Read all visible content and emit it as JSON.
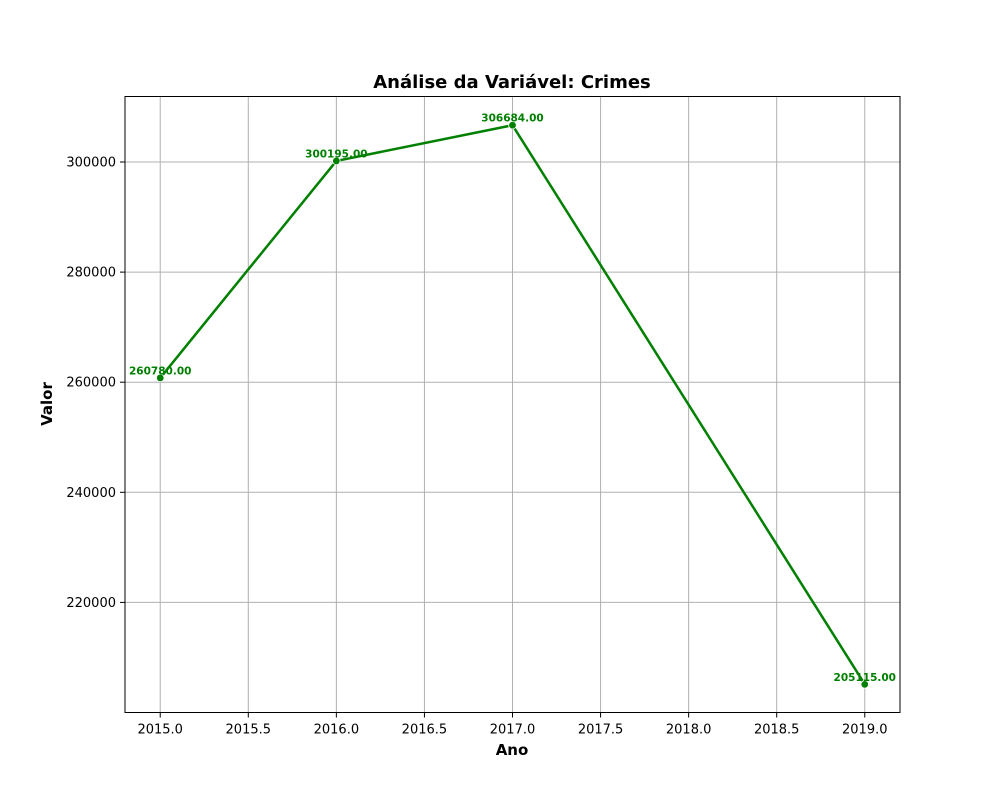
{
  "chart_data": {
    "type": "line",
    "title": "Análise da Variável: Crimes",
    "xlabel": "Ano",
    "ylabel": "Valor",
    "x": [
      2015,
      2016,
      2017,
      2019
    ],
    "series": [
      {
        "values": [
          260780.0,
          300195.0,
          306684.0,
          205115.0
        ],
        "labels": [
          "260780.00",
          "300195.00",
          "306684.00",
          "205115.00"
        ],
        "color": "#008000"
      }
    ],
    "xlim": [
      2014.8,
      2019.2
    ],
    "ylim": [
      200000,
      311900
    ],
    "xticks": [
      2015.0,
      2015.5,
      2016.0,
      2016.5,
      2017.0,
      2017.5,
      2018.0,
      2018.5,
      2019.0
    ],
    "xtick_labels": [
      "2015.0",
      "2015.5",
      "2016.0",
      "2016.5",
      "2017.0",
      "2017.5",
      "2018.0",
      "2018.5",
      "2019.0"
    ],
    "yticks": [
      220000,
      240000,
      260000,
      280000,
      300000
    ],
    "ytick_labels": [
      "220000",
      "240000",
      "260000",
      "280000",
      "300000"
    ],
    "grid": true,
    "legend": "none"
  }
}
